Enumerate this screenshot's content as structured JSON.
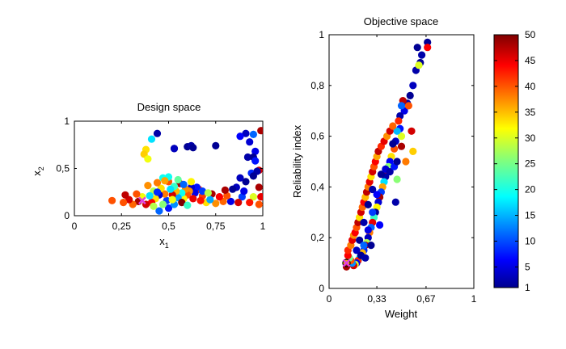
{
  "chart_data": [
    {
      "type": "scatter",
      "title": "Design space",
      "xlabel": "x",
      "xlabel_sub": "1",
      "ylabel": "x",
      "ylabel_sub": "2",
      "xlim": [
        0,
        1
      ],
      "ylim": [
        0,
        1
      ],
      "xticks": [
        0,
        0.25,
        0.5,
        0.75,
        1
      ],
      "xtick_labels": [
        "0",
        "0,25",
        "0,5",
        "0,75",
        "1"
      ],
      "yticks": [
        0,
        0.5,
        1
      ],
      "ytick_labels": [
        "0",
        "0,5",
        "1"
      ],
      "grid": false,
      "color_variable_range": [
        1,
        50
      ],
      "points": [
        [
          0.44,
          0.87,
          3
        ],
        [
          0.41,
          0.81,
          18
        ],
        [
          0.38,
          0.7,
          33
        ],
        [
          0.37,
          0.65,
          34
        ],
        [
          0.39,
          0.6,
          31
        ],
        [
          0.53,
          0.71,
          2
        ],
        [
          0.6,
          0.73,
          2
        ],
        [
          0.62,
          0.74,
          3
        ],
        [
          0.63,
          0.72,
          2
        ],
        [
          0.53,
          0.71,
          4
        ],
        [
          0.75,
          0.74,
          2
        ],
        [
          0.91,
          0.87,
          4
        ],
        [
          0.95,
          0.86,
          12
        ],
        [
          0.99,
          0.9,
          48
        ],
        [
          0.88,
          0.84,
          7
        ],
        [
          0.93,
          0.78,
          5
        ],
        [
          0.96,
          0.68,
          6
        ],
        [
          0.92,
          0.62,
          3
        ],
        [
          0.95,
          0.62,
          2
        ],
        [
          0.96,
          0.58,
          8
        ],
        [
          0.98,
          0.48,
          46
        ],
        [
          0.94,
          0.45,
          9
        ],
        [
          0.97,
          0.47,
          3
        ],
        [
          0.95,
          0.42,
          2
        ],
        [
          0.91,
          0.36,
          2
        ],
        [
          0.88,
          0.4,
          4
        ],
        [
          0.86,
          0.3,
          4
        ],
        [
          0.98,
          0.3,
          48
        ],
        [
          0.99,
          0.2,
          45
        ],
        [
          0.98,
          0.12,
          40
        ],
        [
          0.95,
          0.2,
          30
        ],
        [
          0.93,
          0.14,
          43
        ],
        [
          0.89,
          0.2,
          10
        ],
        [
          0.87,
          0.14,
          46
        ],
        [
          0.83,
          0.15,
          6
        ],
        [
          0.81,
          0.21,
          40
        ],
        [
          0.79,
          0.15,
          39
        ],
        [
          0.77,
          0.2,
          44
        ],
        [
          0.75,
          0.13,
          37
        ],
        [
          0.73,
          0.23,
          48
        ],
        [
          0.7,
          0.14,
          33
        ],
        [
          0.68,
          0.21,
          41
        ],
        [
          0.66,
          0.28,
          42
        ],
        [
          0.65,
          0.3,
          8
        ],
        [
          0.64,
          0.24,
          6
        ],
        [
          0.62,
          0.3,
          5
        ],
        [
          0.61,
          0.26,
          37
        ],
        [
          0.6,
          0.22,
          40
        ],
        [
          0.59,
          0.28,
          37
        ],
        [
          0.58,
          0.18,
          32
        ],
        [
          0.57,
          0.24,
          20
        ],
        [
          0.56,
          0.34,
          48
        ],
        [
          0.55,
          0.19,
          15
        ],
        [
          0.54,
          0.26,
          35
        ],
        [
          0.53,
          0.31,
          22
        ],
        [
          0.52,
          0.22,
          46
        ],
        [
          0.51,
          0.28,
          18
        ],
        [
          0.5,
          0.36,
          40
        ],
        [
          0.49,
          0.16,
          10
        ],
        [
          0.48,
          0.23,
          38
        ],
        [
          0.47,
          0.4,
          20
        ],
        [
          0.46,
          0.29,
          33
        ],
        [
          0.45,
          0.22,
          5
        ],
        [
          0.44,
          0.35,
          38
        ],
        [
          0.43,
          0.18,
          33
        ],
        [
          0.42,
          0.26,
          28
        ],
        [
          0.41,
          0.14,
          44
        ],
        [
          0.4,
          0.21,
          18
        ],
        [
          0.39,
          0.32,
          37
        ],
        [
          0.38,
          0.12,
          46
        ],
        [
          0.36,
          0.2,
          31
        ],
        [
          0.34,
          0.15,
          48
        ],
        [
          0.33,
          0.23,
          40
        ],
        [
          0.31,
          0.12,
          39
        ],
        [
          0.29,
          0.17,
          46
        ],
        [
          0.27,
          0.22,
          47
        ],
        [
          0.26,
          0.14,
          40
        ],
        [
          0.2,
          0.16,
          40
        ],
        [
          0.5,
          0.41,
          20
        ],
        [
          0.55,
          0.38,
          24
        ],
        [
          0.48,
          0.37,
          36
        ],
        [
          0.58,
          0.33,
          12
        ],
        [
          0.62,
          0.36,
          32
        ],
        [
          0.68,
          0.26,
          10
        ],
        [
          0.72,
          0.17,
          15
        ],
        [
          0.8,
          0.27,
          48
        ],
        [
          0.84,
          0.28,
          2
        ],
        [
          0.9,
          0.26,
          6
        ],
        [
          0.45,
          0.05,
          12
        ],
        [
          0.42,
          0.1,
          28
        ],
        [
          0.5,
          0.08,
          8
        ],
        [
          0.53,
          0.12,
          14
        ],
        [
          0.47,
          0.12,
          26
        ],
        [
          0.57,
          0.14,
          50
        ],
        [
          0.6,
          0.11,
          22
        ],
        [
          0.44,
          0.25,
          9
        ],
        [
          0.52,
          0.17,
          31
        ],
        [
          0.63,
          0.18,
          45
        ],
        [
          0.67,
          0.16,
          43
        ],
        [
          0.71,
          0.24,
          28
        ]
      ]
    },
    {
      "type": "scatter",
      "title": "Objective space",
      "xlabel": "Weight",
      "ylabel": "Reliability index",
      "xlim": [
        0,
        1
      ],
      "ylim": [
        0,
        1
      ],
      "xticks": [
        0,
        0.33,
        0.67,
        1
      ],
      "xtick_labels": [
        "0",
        "0,33",
        "0,67",
        "1"
      ],
      "yticks": [
        0,
        0.2,
        0.4,
        0.6,
        0.8,
        1
      ],
      "ytick_labels": [
        "0",
        "0,2",
        "0,4",
        "0,6",
        "0,8",
        "1"
      ],
      "grid": false,
      "color_variable_range": [
        1,
        50
      ],
      "points": [
        [
          0.68,
          0.97,
          2
        ],
        [
          0.68,
          0.95,
          44
        ],
        [
          0.64,
          0.92,
          3
        ],
        [
          0.63,
          0.89,
          2
        ],
        [
          0.6,
          0.86,
          3
        ],
        [
          0.62,
          0.88,
          30
        ],
        [
          0.61,
          0.95,
          2
        ],
        [
          0.58,
          0.8,
          4
        ],
        [
          0.56,
          0.76,
          2
        ],
        [
          0.54,
          0.73,
          3
        ],
        [
          0.52,
          0.7,
          6
        ],
        [
          0.51,
          0.74,
          47
        ],
        [
          0.5,
          0.72,
          12
        ],
        [
          0.49,
          0.68,
          3
        ],
        [
          0.48,
          0.66,
          42
        ],
        [
          0.49,
          0.63,
          8
        ],
        [
          0.5,
          0.6,
          30
        ],
        [
          0.47,
          0.62,
          16
        ],
        [
          0.46,
          0.58,
          4
        ],
        [
          0.45,
          0.55,
          40
        ],
        [
          0.44,
          0.57,
          2
        ],
        [
          0.43,
          0.52,
          33
        ],
        [
          0.42,
          0.5,
          7
        ],
        [
          0.41,
          0.48,
          26
        ],
        [
          0.4,
          0.46,
          44
        ],
        [
          0.39,
          0.44,
          3
        ],
        [
          0.38,
          0.42,
          18
        ],
        [
          0.37,
          0.4,
          36
        ],
        [
          0.36,
          0.38,
          10
        ],
        [
          0.35,
          0.36,
          48
        ],
        [
          0.34,
          0.34,
          5
        ],
        [
          0.33,
          0.32,
          32
        ],
        [
          0.32,
          0.3,
          2
        ],
        [
          0.31,
          0.28,
          22
        ],
        [
          0.3,
          0.26,
          45
        ],
        [
          0.29,
          0.24,
          12
        ],
        [
          0.28,
          0.22,
          38
        ],
        [
          0.27,
          0.2,
          4
        ],
        [
          0.26,
          0.18,
          28
        ],
        [
          0.25,
          0.17,
          47
        ],
        [
          0.24,
          0.15,
          9
        ],
        [
          0.23,
          0.14,
          35
        ],
        [
          0.22,
          0.13,
          2
        ],
        [
          0.21,
          0.12,
          20
        ],
        [
          0.2,
          0.11,
          42
        ],
        [
          0.19,
          0.1,
          6
        ],
        [
          0.18,
          0.095,
          30
        ],
        [
          0.17,
          0.09,
          46
        ],
        [
          0.16,
          0.1,
          14
        ],
        [
          0.15,
          0.11,
          40
        ],
        [
          0.14,
          0.12,
          25
        ],
        [
          0.13,
          0.13,
          44
        ],
        [
          0.12,
          0.1,
          36
        ],
        [
          0.12,
          0.085,
          48
        ],
        [
          0.13,
          0.15,
          42
        ],
        [
          0.15,
          0.17,
          38
        ],
        [
          0.16,
          0.19,
          45
        ],
        [
          0.17,
          0.21,
          37
        ],
        [
          0.18,
          0.22,
          44
        ],
        [
          0.19,
          0.24,
          40
        ],
        [
          0.2,
          0.26,
          47
        ],
        [
          0.21,
          0.28,
          33
        ],
        [
          0.22,
          0.3,
          46
        ],
        [
          0.23,
          0.32,
          39
        ],
        [
          0.24,
          0.34,
          44
        ],
        [
          0.25,
          0.36,
          35
        ],
        [
          0.26,
          0.38,
          47
        ],
        [
          0.27,
          0.4,
          38
        ],
        [
          0.28,
          0.42,
          45
        ],
        [
          0.29,
          0.44,
          33
        ],
        [
          0.3,
          0.46,
          46
        ],
        [
          0.31,
          0.48,
          40
        ],
        [
          0.32,
          0.5,
          44
        ],
        [
          0.33,
          0.52,
          36
        ],
        [
          0.34,
          0.54,
          47
        ],
        [
          0.36,
          0.56,
          42
        ],
        [
          0.38,
          0.58,
          45
        ],
        [
          0.4,
          0.6,
          37
        ],
        [
          0.42,
          0.62,
          46
        ],
        [
          0.44,
          0.64,
          39
        ],
        [
          0.36,
          0.45,
          2
        ],
        [
          0.39,
          0.47,
          5
        ],
        [
          0.42,
          0.46,
          3
        ],
        [
          0.45,
          0.48,
          8
        ],
        [
          0.47,
          0.5,
          2
        ],
        [
          0.3,
          0.39,
          3
        ],
        [
          0.33,
          0.37,
          7
        ],
        [
          0.27,
          0.33,
          2
        ],
        [
          0.3,
          0.3,
          10
        ],
        [
          0.24,
          0.26,
          3
        ],
        [
          0.27,
          0.23,
          6
        ],
        [
          0.21,
          0.19,
          2
        ],
        [
          0.24,
          0.17,
          12
        ],
        [
          0.19,
          0.15,
          4
        ],
        [
          0.22,
          0.13,
          2
        ],
        [
          0.55,
          0.72,
          40
        ],
        [
          0.57,
          0.62,
          46
        ],
        [
          0.5,
          0.56,
          48
        ],
        [
          0.53,
          0.5,
          38
        ],
        [
          0.46,
          0.34,
          3
        ],
        [
          0.58,
          0.54,
          34
        ],
        [
          0.47,
          0.43,
          26
        ],
        [
          0.25,
          0.12,
          3
        ],
        [
          0.29,
          0.17,
          2
        ],
        [
          0.35,
          0.25,
          7
        ]
      ],
      "outlined_point": [
        0.12,
        0.1
      ],
      "cross_marker": [
        0.12,
        0.1
      ]
    }
  ],
  "colorbar": {
    "range": [
      1,
      50
    ],
    "ticks": [
      1,
      5,
      10,
      15,
      20,
      25,
      30,
      35,
      40,
      45,
      50
    ],
    "tick_labels": [
      "1",
      "5",
      "10",
      "15",
      "20",
      "25",
      "30",
      "35",
      "40",
      "45",
      "50"
    ],
    "colormap": "jet"
  },
  "design_space_cross": [
    0.36,
    0.16
  ],
  "colors": {
    "cross": "#e040e0",
    "axis": "#000000"
  }
}
